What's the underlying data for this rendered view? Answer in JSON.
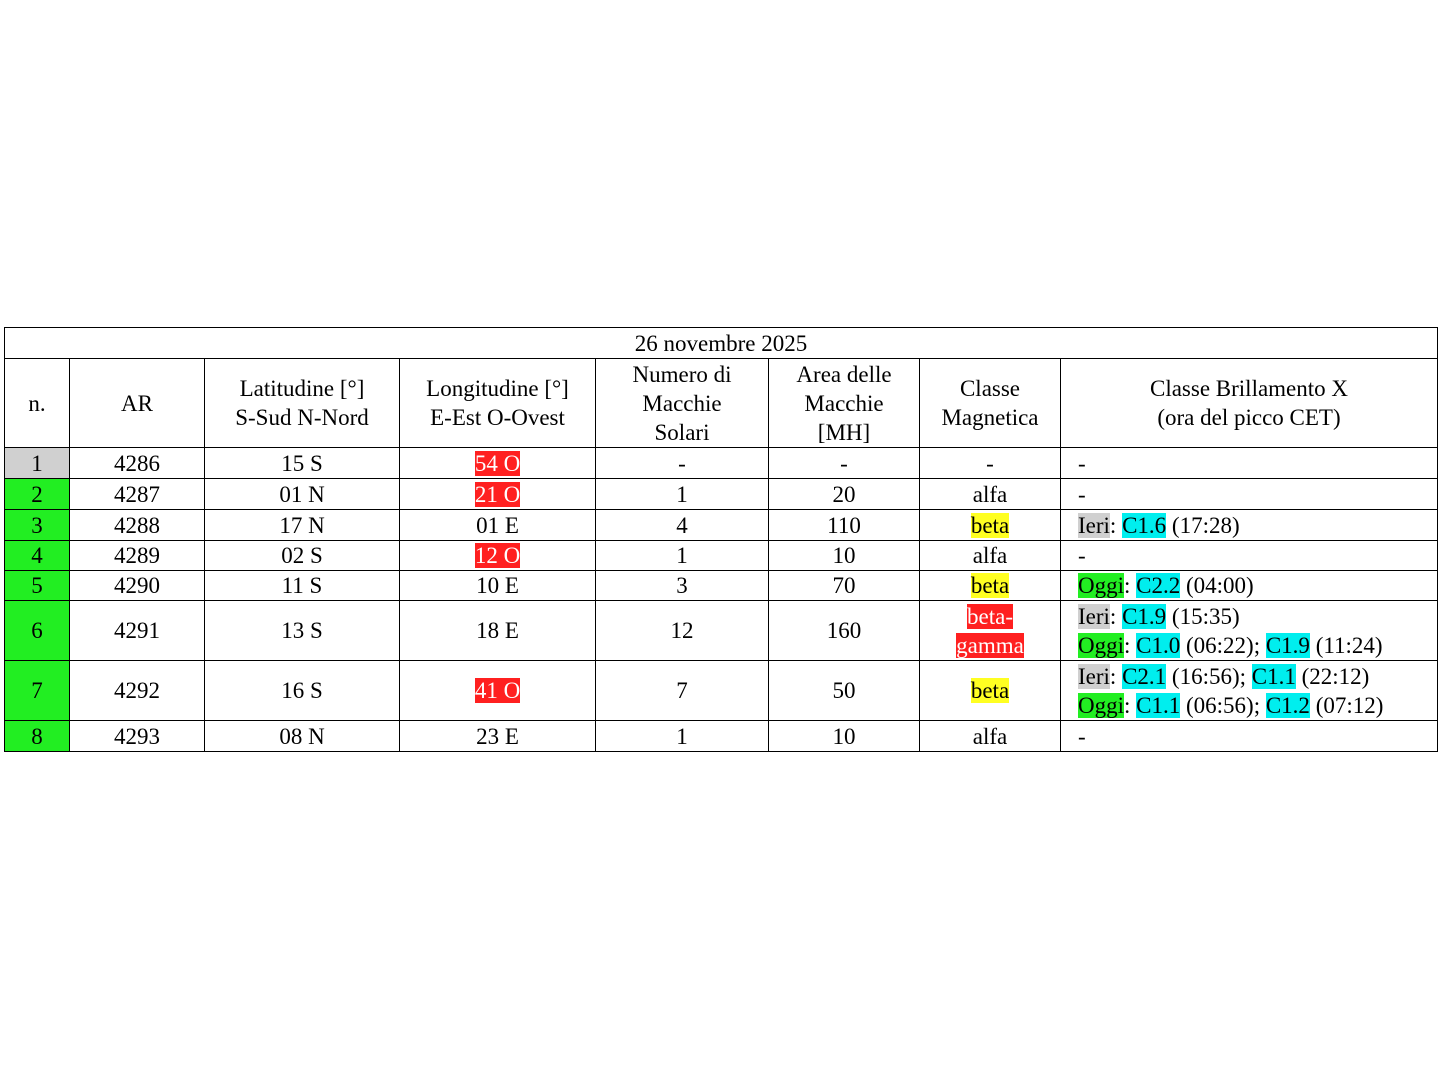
{
  "title": "26 novembre 2025",
  "headers": [
    "n.",
    "AR",
    "Latitudine [°]\nS-Sud N-Nord",
    "Longitudine [°]\nE-Est O-Ovest",
    "Numero di\nMacchie\nSolari",
    "Area delle\nMacchie\n[MH]",
    "Classe\nMagnetica",
    "Classe Brillamento X\n(ora del picco CET)"
  ],
  "colors": {
    "gray": "#d0d0d0",
    "green": "#22ee22",
    "red": "#ff2020",
    "yellow": "#ffff22",
    "cyan": "#00eeee"
  },
  "rows": [
    {
      "n": "1",
      "n_hl": "g",
      "ar": "4286",
      "lat": "15 S",
      "lon": "54 O",
      "lon_hl": "r",
      "num": "-",
      "area": "-",
      "mag": "-",
      "mag_hl": "",
      "flare": [
        [
          {
            "t": "-"
          }
        ]
      ]
    },
    {
      "n": "2",
      "n_hl": "gr",
      "ar": "4287",
      "lat": "01 N",
      "lon": "21 O",
      "lon_hl": "r",
      "num": "1",
      "area": "20",
      "mag": "alfa",
      "mag_hl": "",
      "flare": [
        [
          {
            "t": "-"
          }
        ]
      ]
    },
    {
      "n": "3",
      "n_hl": "gr",
      "ar": "4288",
      "lat": "17 N",
      "lon": "01 E",
      "lon_hl": "",
      "num": "4",
      "area": "110",
      "mag": "beta",
      "mag_hl": "y",
      "flare": [
        [
          {
            "t": "Ieri",
            "h": "g"
          },
          {
            "t": ": "
          },
          {
            "t": "C1.6",
            "h": "c"
          },
          {
            "t": " (17:28)"
          }
        ]
      ]
    },
    {
      "n": "4",
      "n_hl": "gr",
      "ar": "4289",
      "lat": "02 S",
      "lon": "12 O",
      "lon_hl": "r",
      "num": "1",
      "area": "10",
      "mag": "alfa",
      "mag_hl": "",
      "flare": [
        [
          {
            "t": "-"
          }
        ]
      ]
    },
    {
      "n": "5",
      "n_hl": "gr",
      "ar": "4290",
      "lat": "11 S",
      "lon": "10 E",
      "lon_hl": "",
      "num": "3",
      "area": "70",
      "mag": "beta",
      "mag_hl": "y",
      "flare": [
        [
          {
            "t": "Oggi",
            "h": "gr"
          },
          {
            "t": ": "
          },
          {
            "t": "C2.2",
            "h": "c"
          },
          {
            "t": " (04:00)"
          }
        ]
      ]
    },
    {
      "n": "6",
      "n_hl": "gr",
      "ar": "4291",
      "lat": "13 S",
      "lon": "18 E",
      "lon_hl": "",
      "num": "12",
      "area": "160",
      "mag": "beta-\ngamma",
      "mag_hl": "r",
      "flare": [
        [
          {
            "t": "Ieri",
            "h": "g"
          },
          {
            "t": ": "
          },
          {
            "t": "C1.9",
            "h": "c"
          },
          {
            "t": " (15:35)"
          }
        ],
        [
          {
            "t": "Oggi",
            "h": "gr"
          },
          {
            "t": ": "
          },
          {
            "t": "C1.0",
            "h": "c"
          },
          {
            "t": " (06:22); "
          },
          {
            "t": "C1.9",
            "h": "c"
          },
          {
            "t": " (11:24)"
          }
        ]
      ]
    },
    {
      "n": "7",
      "n_hl": "gr",
      "ar": "4292",
      "lat": "16 S",
      "lon": "41 O",
      "lon_hl": "r",
      "num": "7",
      "area": "50",
      "mag": "beta",
      "mag_hl": "y",
      "flare": [
        [
          {
            "t": "Ieri",
            "h": "g"
          },
          {
            "t": ": "
          },
          {
            "t": "C2.1",
            "h": "c"
          },
          {
            "t": " (16:56); "
          },
          {
            "t": "C1.1",
            "h": "c"
          },
          {
            "t": " (22:12)"
          }
        ],
        [
          {
            "t": "Oggi",
            "h": "gr"
          },
          {
            "t": ": "
          },
          {
            "t": "C1.1",
            "h": "c"
          },
          {
            "t": " (06:56); "
          },
          {
            "t": "C1.2",
            "h": "c"
          },
          {
            "t": " (07:12)"
          }
        ]
      ]
    },
    {
      "n": "8",
      "n_hl": "gr",
      "ar": "4293",
      "lat": "08 N",
      "lon": "23 E",
      "lon_hl": "",
      "num": "1",
      "area": "10",
      "mag": "alfa",
      "mag_hl": "",
      "flare": [
        [
          {
            "t": "-"
          }
        ]
      ]
    }
  ]
}
